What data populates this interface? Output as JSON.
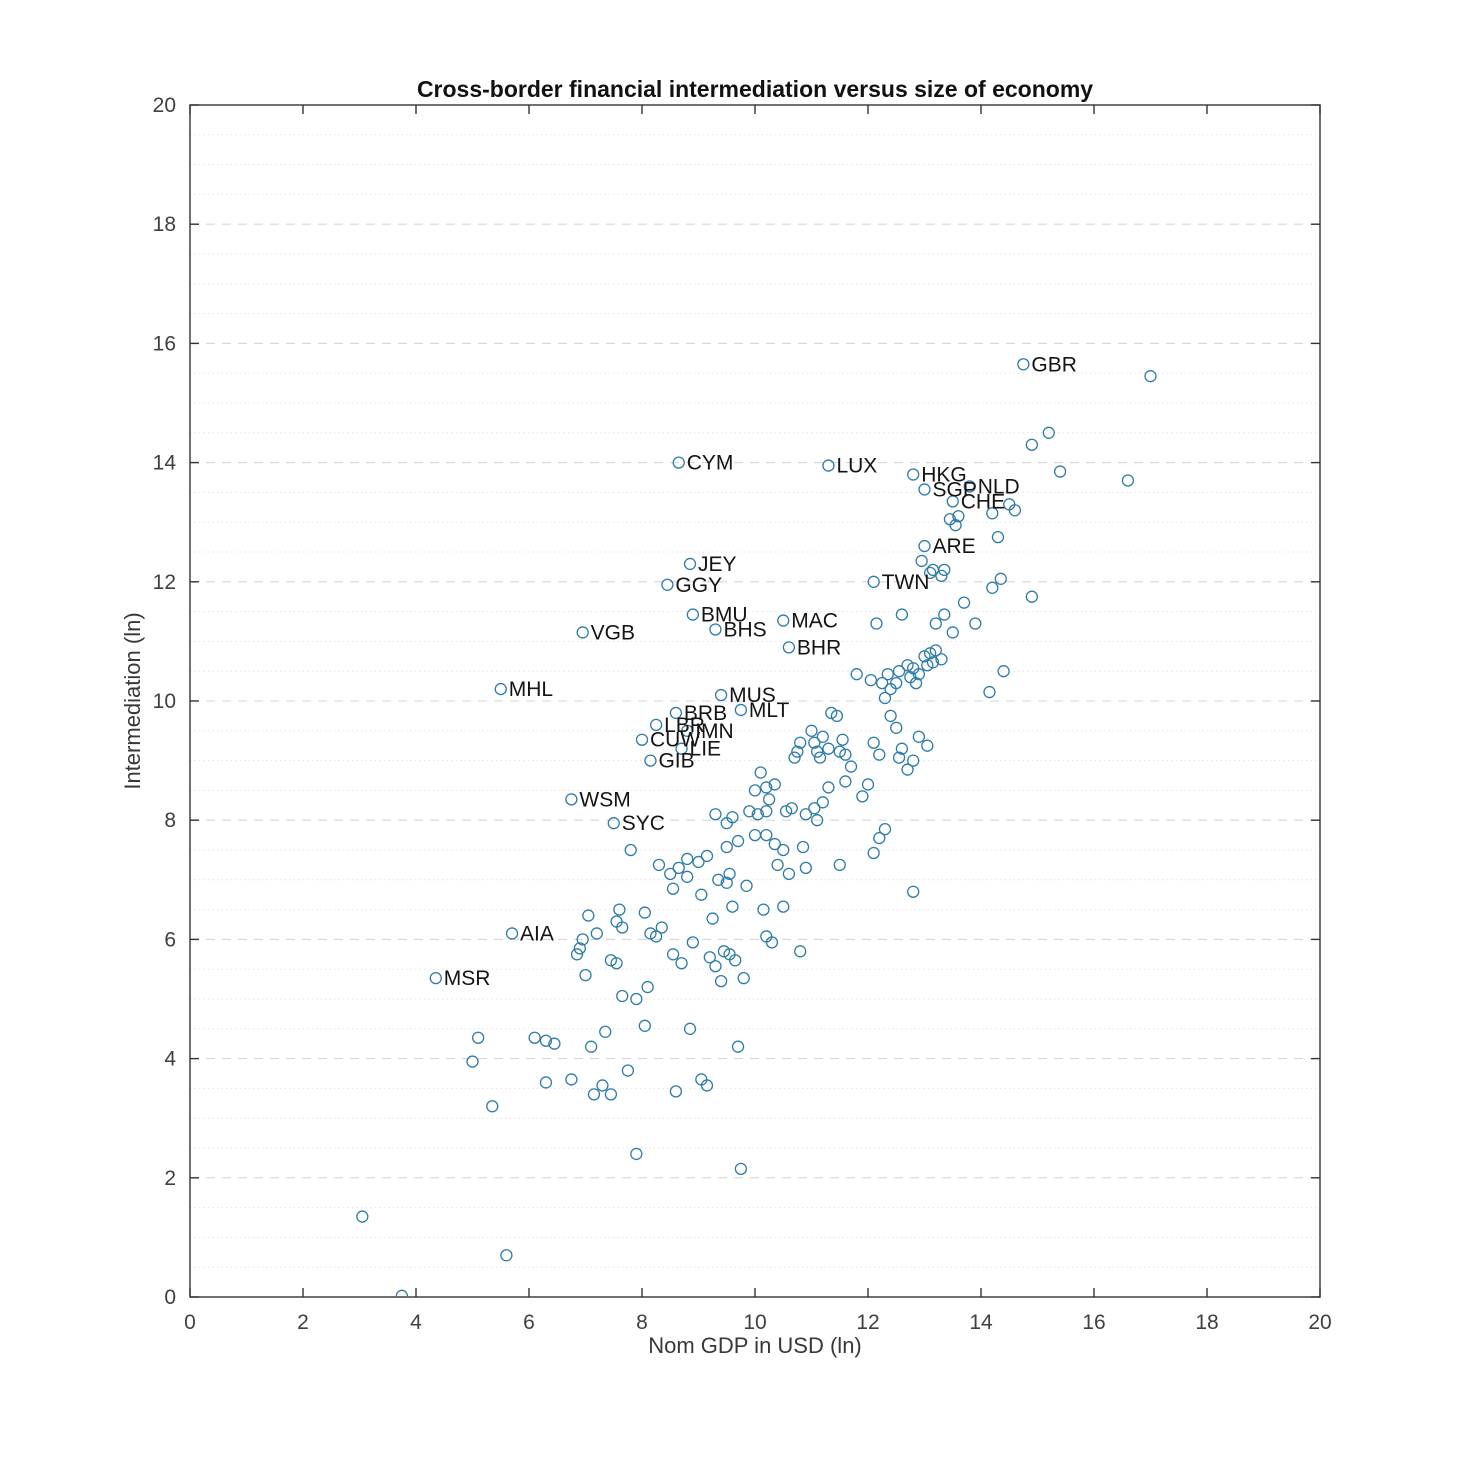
{
  "chart_data": {
    "type": "scatter",
    "title": "Cross-border financial intermediation versus size of economy",
    "xlabel": "Nom GDP in USD (ln)",
    "ylabel": "Intermediation (ln)",
    "xlim": [
      0,
      20
    ],
    "ylim": [
      0,
      20
    ],
    "xticks": [
      0,
      2,
      4,
      6,
      8,
      10,
      12,
      14,
      16,
      18,
      20
    ],
    "yticks": [
      0,
      2,
      4,
      6,
      8,
      10,
      12,
      14,
      16,
      18,
      20
    ],
    "grid": "horizontal-dashed-major-dotted-minor",
    "legend": "none",
    "marker": "hollow-circle",
    "marker_color": "#2E7CA6",
    "axis_color": "#333333",
    "labeled_points": [
      {
        "label": "GBR",
        "x": 14.75,
        "y": 15.65
      },
      {
        "label": "CYM",
        "x": 8.65,
        "y": 14.0
      },
      {
        "label": "LUX",
        "x": 11.3,
        "y": 13.95
      },
      {
        "label": "HKG",
        "x": 12.8,
        "y": 13.8
      },
      {
        "label": "SGP",
        "x": 13.0,
        "y": 13.55
      },
      {
        "label": "NLD",
        "x": 13.8,
        "y": 13.6
      },
      {
        "label": "CHE",
        "x": 13.5,
        "y": 13.35
      },
      {
        "label": "ARE",
        "x": 13.0,
        "y": 12.6
      },
      {
        "label": "JEY",
        "x": 8.85,
        "y": 12.3
      },
      {
        "label": "GGY",
        "x": 8.45,
        "y": 11.95
      },
      {
        "label": "TWN",
        "x": 12.1,
        "y": 12.0
      },
      {
        "label": "BMU",
        "x": 8.9,
        "y": 11.45
      },
      {
        "label": "MAC",
        "x": 10.5,
        "y": 11.35
      },
      {
        "label": "BHS",
        "x": 9.3,
        "y": 11.2
      },
      {
        "label": "BHR",
        "x": 10.6,
        "y": 10.9
      },
      {
        "label": "VGB",
        "x": 6.95,
        "y": 11.15
      },
      {
        "label": "MHL",
        "x": 5.5,
        "y": 10.2
      },
      {
        "label": "MUS",
        "x": 9.4,
        "y": 10.1
      },
      {
        "label": "MLT",
        "x": 9.75,
        "y": 9.85
      },
      {
        "label": "BRB",
        "x": 8.6,
        "y": 9.8
      },
      {
        "label": "LBR",
        "x": 8.25,
        "y": 9.6
      },
      {
        "label": "IMN",
        "x": 8.8,
        "y": 9.5
      },
      {
        "label": "CUW",
        "x": 8.0,
        "y": 9.35
      },
      {
        "label": "LIE",
        "x": 8.7,
        "y": 9.2
      },
      {
        "label": "GIB",
        "x": 8.15,
        "y": 9.0
      },
      {
        "label": "WSM",
        "x": 6.75,
        "y": 8.35
      },
      {
        "label": "SYC",
        "x": 7.5,
        "y": 7.95
      },
      {
        "label": "AIA",
        "x": 5.7,
        "y": 6.1
      },
      {
        "label": "MSR",
        "x": 4.35,
        "y": 5.35
      }
    ],
    "points": [
      [
        3.05,
        1.35
      ],
      [
        5.6,
        0.7
      ],
      [
        3.75,
        0.02
      ],
      [
        9.75,
        2.15
      ],
      [
        7.9,
        2.4
      ],
      [
        5.35,
        3.2
      ],
      [
        6.3,
        3.6
      ],
      [
        7.15,
        3.4
      ],
      [
        6.75,
        3.65
      ],
      [
        7.3,
        3.55
      ],
      [
        7.75,
        3.8
      ],
      [
        9.05,
        3.65
      ],
      [
        9.15,
        3.55
      ],
      [
        5.0,
        3.95
      ],
      [
        5.1,
        4.35
      ],
      [
        6.1,
        4.35
      ],
      [
        6.3,
        4.3
      ],
      [
        6.45,
        4.25
      ],
      [
        7.1,
        4.2
      ],
      [
        7.35,
        4.45
      ],
      [
        8.05,
        4.55
      ],
      [
        8.85,
        4.5
      ],
      [
        9.7,
        4.2
      ],
      [
        7.9,
        5.0
      ],
      [
        8.1,
        5.2
      ],
      [
        7.65,
        5.05
      ],
      [
        7.0,
        5.4
      ],
      [
        7.45,
        5.65
      ],
      [
        7.55,
        5.6
      ],
      [
        8.55,
        5.75
      ],
      [
        8.7,
        5.6
      ],
      [
        9.3,
        5.55
      ],
      [
        9.55,
        5.75
      ],
      [
        9.65,
        5.65
      ],
      [
        9.8,
        5.35
      ],
      [
        10.3,
        5.95
      ],
      [
        10.8,
        5.8
      ],
      [
        6.9,
        5.85
      ],
      [
        6.95,
        6.0
      ],
      [
        7.05,
        6.4
      ],
      [
        7.55,
        6.3
      ],
      [
        7.65,
        6.2
      ],
      [
        7.6,
        6.5
      ],
      [
        8.05,
        6.45
      ],
      [
        8.15,
        6.1
      ],
      [
        8.25,
        6.05
      ],
      [
        8.9,
        5.95
      ],
      [
        9.25,
        6.35
      ],
      [
        9.6,
        6.55
      ],
      [
        10.5,
        6.55
      ],
      [
        10.2,
        6.05
      ],
      [
        12.8,
        6.8
      ],
      [
        8.55,
        6.85
      ],
      [
        8.8,
        7.05
      ],
      [
        9.35,
        7.0
      ],
      [
        9.5,
        6.95
      ],
      [
        9.55,
        7.1
      ],
      [
        8.3,
        7.25
      ],
      [
        8.65,
        7.2
      ],
      [
        7.8,
        7.5
      ],
      [
        8.8,
        7.35
      ],
      [
        9.0,
        7.3
      ],
      [
        9.15,
        7.4
      ],
      [
        9.5,
        7.55
      ],
      [
        9.7,
        7.65
      ],
      [
        10.0,
        7.75
      ],
      [
        10.2,
        7.75
      ],
      [
        10.35,
        7.6
      ],
      [
        10.5,
        7.5
      ],
      [
        10.85,
        7.55
      ],
      [
        12.2,
        7.7
      ],
      [
        12.3,
        7.85
      ],
      [
        12.1,
        7.45
      ],
      [
        10.9,
        7.2
      ],
      [
        11.5,
        7.25
      ],
      [
        10.6,
        7.1
      ],
      [
        9.9,
        8.15
      ],
      [
        10.05,
        8.1
      ],
      [
        10.2,
        8.15
      ],
      [
        9.6,
        8.05
      ],
      [
        9.3,
        8.1
      ],
      [
        9.5,
        7.95
      ],
      [
        10.9,
        8.1
      ],
      [
        11.05,
        8.2
      ],
      [
        11.1,
        8.0
      ],
      [
        11.2,
        8.3
      ],
      [
        11.3,
        8.55
      ],
      [
        10.2,
        8.55
      ],
      [
        10.35,
        8.6
      ],
      [
        10.0,
        8.5
      ],
      [
        10.25,
        8.35
      ],
      [
        10.1,
        8.8
      ],
      [
        11.6,
        8.65
      ],
      [
        11.7,
        8.9
      ],
      [
        12.7,
        8.85
      ],
      [
        12.8,
        9.0
      ],
      [
        10.7,
        9.05
      ],
      [
        10.75,
        9.15
      ],
      [
        10.8,
        9.3
      ],
      [
        11.0,
        9.5
      ],
      [
        11.05,
        9.3
      ],
      [
        11.1,
        9.15
      ],
      [
        11.15,
        9.05
      ],
      [
        11.2,
        9.4
      ],
      [
        11.3,
        9.2
      ],
      [
        11.5,
        9.15
      ],
      [
        11.55,
        9.35
      ],
      [
        11.6,
        9.1
      ],
      [
        12.1,
        9.3
      ],
      [
        12.2,
        9.1
      ],
      [
        11.35,
        9.8
      ],
      [
        11.45,
        9.75
      ],
      [
        12.4,
        9.75
      ],
      [
        12.5,
        9.55
      ],
      [
        12.9,
        9.4
      ],
      [
        13.05,
        9.25
      ],
      [
        12.3,
        10.05
      ],
      [
        12.35,
        10.45
      ],
      [
        12.5,
        10.3
      ],
      [
        12.55,
        10.5
      ],
      [
        12.7,
        10.6
      ],
      [
        12.75,
        10.4
      ],
      [
        12.8,
        10.55
      ],
      [
        12.85,
        10.3
      ],
      [
        12.9,
        10.45
      ],
      [
        13.0,
        10.75
      ],
      [
        13.05,
        10.6
      ],
      [
        13.1,
        10.8
      ],
      [
        13.15,
        10.65
      ],
      [
        13.2,
        10.85
      ],
      [
        13.3,
        10.7
      ],
      [
        12.15,
        11.3
      ],
      [
        13.2,
        11.3
      ],
      [
        13.35,
        11.45
      ],
      [
        13.5,
        11.15
      ],
      [
        13.9,
        11.3
      ],
      [
        13.7,
        11.65
      ],
      [
        13.3,
        12.1
      ],
      [
        13.35,
        12.2
      ],
      [
        13.1,
        12.15
      ],
      [
        12.95,
        12.35
      ],
      [
        14.35,
        12.05
      ],
      [
        14.2,
        11.9
      ],
      [
        14.15,
        10.15
      ],
      [
        14.4,
        10.5
      ],
      [
        15.2,
        14.5
      ],
      [
        14.9,
        14.3
      ],
      [
        15.4,
        13.85
      ],
      [
        16.6,
        13.7
      ],
      [
        17.0,
        15.45
      ],
      [
        14.5,
        13.3
      ],
      [
        14.6,
        13.2
      ],
      [
        14.2,
        13.15
      ],
      [
        14.3,
        12.75
      ],
      [
        14.9,
        11.75
      ],
      [
        13.55,
        12.95
      ],
      [
        13.45,
        13.05
      ],
      [
        13.6,
        13.1
      ],
      [
        12.6,
        11.45
      ],
      [
        11.8,
        10.45
      ],
      [
        12.05,
        10.35
      ],
      [
        12.25,
        10.3
      ],
      [
        12.4,
        10.2
      ],
      [
        11.9,
        8.4
      ],
      [
        12.0,
        8.6
      ],
      [
        10.55,
        8.15
      ],
      [
        10.65,
        8.2
      ],
      [
        9.4,
        5.3
      ],
      [
        8.35,
        6.2
      ],
      [
        7.2,
        6.1
      ],
      [
        6.85,
        5.75
      ],
      [
        10.15,
        6.5
      ],
      [
        9.85,
        6.9
      ],
      [
        10.4,
        7.25
      ],
      [
        8.5,
        7.1
      ],
      [
        9.05,
        6.75
      ],
      [
        9.2,
        5.7
      ],
      [
        9.45,
        5.8
      ],
      [
        8.6,
        3.45
      ],
      [
        7.45,
        3.4
      ],
      [
        13.15,
        12.2
      ],
      [
        12.55,
        9.05
      ],
      [
        12.6,
        9.2
      ]
    ]
  }
}
